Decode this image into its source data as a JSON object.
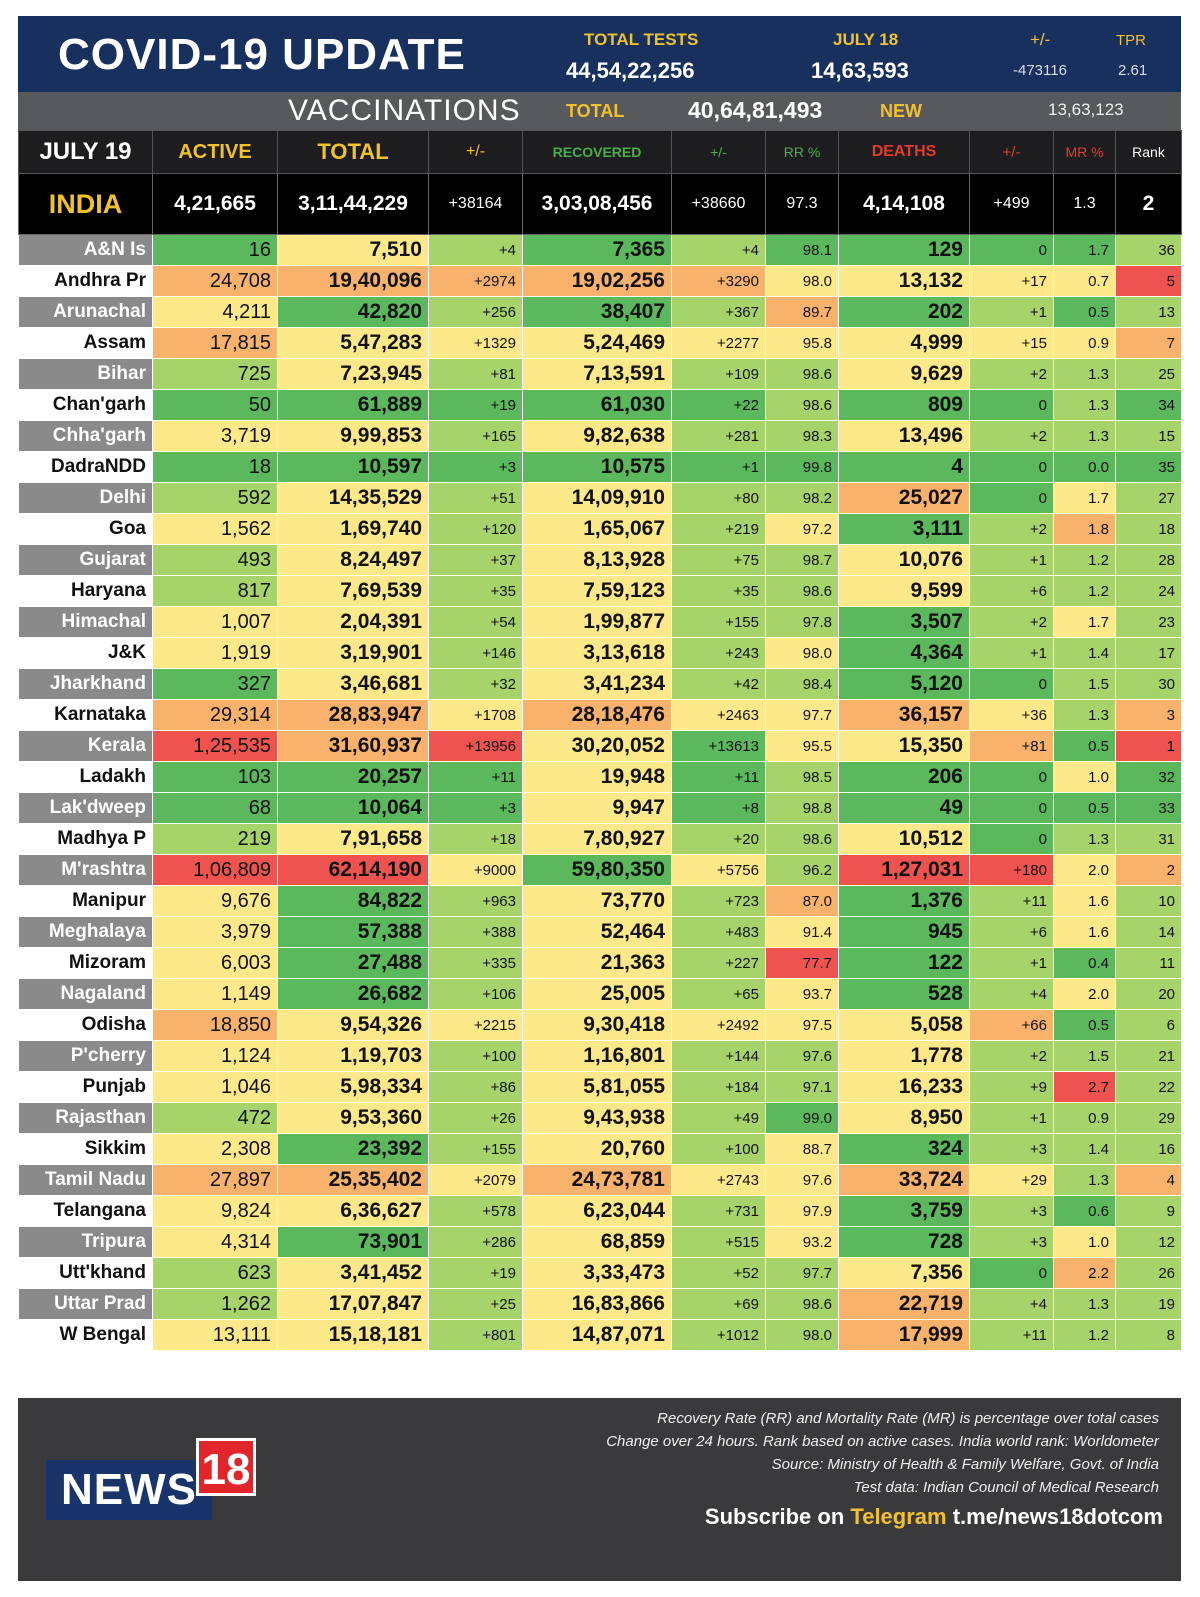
{
  "header": {
    "title": "COVID-19 UPDATE",
    "total_tests_label": "TOTAL TESTS",
    "total_tests_value": "44,54,22,256",
    "date_label": "JULY 18",
    "date_value": "14,63,593",
    "change_label": "+/-",
    "change_value": "-473116",
    "tpr_label": "TPR",
    "tpr_value": "2.61"
  },
  "vaccinations": {
    "title": "VACCINATIONS",
    "total_label": "TOTAL",
    "total_value": "40,64,81,493",
    "new_label": "NEW",
    "new_value": "13,63,123"
  },
  "columns": {
    "date": "JULY 19",
    "active": "ACTIVE",
    "total": "TOTAL",
    "total_change": "+/-",
    "recovered": "RECOVERED",
    "recovered_change": "+/-",
    "rr": "RR %",
    "deaths": "DEATHS",
    "deaths_change": "+/-",
    "mr": "MR %",
    "rank": "Rank"
  },
  "india": {
    "name": "INDIA",
    "active": "4,21,665",
    "total": "3,11,44,229",
    "total_change": "+38164",
    "recovered": "3,03,08,456",
    "recovered_change": "+38660",
    "rr": "97.3",
    "deaths": "4,14,108",
    "deaths_change": "+499",
    "mr": "1.3",
    "rank": "2"
  },
  "colors": {
    "green": "#5cb85c",
    "light_green": "#a6d36a",
    "yellow": "#fde98a",
    "orange": "#f9b26c",
    "red": "#ef5350"
  },
  "rows": [
    [
      "A&N Is",
      "16",
      "7,510",
      "+4",
      "7,365",
      "+4",
      "98.1",
      "129",
      "0",
      "1.7",
      "36"
    ],
    [
      "Andhra Pr",
      "24,708",
      "19,40,096",
      "+2974",
      "19,02,256",
      "+3290",
      "98.0",
      "13,132",
      "+17",
      "0.7",
      "5"
    ],
    [
      "Arunachal",
      "4,211",
      "42,820",
      "+256",
      "38,407",
      "+367",
      "89.7",
      "202",
      "+1",
      "0.5",
      "13"
    ],
    [
      "Assam",
      "17,815",
      "5,47,283",
      "+1329",
      "5,24,469",
      "+2277",
      "95.8",
      "4,999",
      "+15",
      "0.9",
      "7"
    ],
    [
      "Bihar",
      "725",
      "7,23,945",
      "+81",
      "7,13,591",
      "+109",
      "98.6",
      "9,629",
      "+2",
      "1.3",
      "25"
    ],
    [
      "Chan'garh",
      "50",
      "61,889",
      "+19",
      "61,030",
      "+22",
      "98.6",
      "809",
      "0",
      "1.3",
      "34"
    ],
    [
      "Chha'garh",
      "3,719",
      "9,99,853",
      "+165",
      "9,82,638",
      "+281",
      "98.3",
      "13,496",
      "+2",
      "1.3",
      "15"
    ],
    [
      "DadraNDD",
      "18",
      "10,597",
      "+3",
      "10,575",
      "+1",
      "99.8",
      "4",
      "0",
      "0.0",
      "35"
    ],
    [
      "Delhi",
      "592",
      "14,35,529",
      "+51",
      "14,09,910",
      "+80",
      "98.2",
      "25,027",
      "0",
      "1.7",
      "27"
    ],
    [
      "Goa",
      "1,562",
      "1,69,740",
      "+120",
      "1,65,067",
      "+219",
      "97.2",
      "3,111",
      "+2",
      "1.8",
      "18"
    ],
    [
      "Gujarat",
      "493",
      "8,24,497",
      "+37",
      "8,13,928",
      "+75",
      "98.7",
      "10,076",
      "+1",
      "1.2",
      "28"
    ],
    [
      "Haryana",
      "817",
      "7,69,539",
      "+35",
      "7,59,123",
      "+35",
      "98.6",
      "9,599",
      "+6",
      "1.2",
      "24"
    ],
    [
      "Himachal",
      "1,007",
      "2,04,391",
      "+54",
      "1,99,877",
      "+155",
      "97.8",
      "3,507",
      "+2",
      "1.7",
      "23"
    ],
    [
      "J&K",
      "1,919",
      "3,19,901",
      "+146",
      "3,13,618",
      "+243",
      "98.0",
      "4,364",
      "+1",
      "1.4",
      "17"
    ],
    [
      "Jharkhand",
      "327",
      "3,46,681",
      "+32",
      "3,41,234",
      "+42",
      "98.4",
      "5,120",
      "0",
      "1.5",
      "30"
    ],
    [
      "Karnataka",
      "29,314",
      "28,83,947",
      "+1708",
      "28,18,476",
      "+2463",
      "97.7",
      "36,157",
      "+36",
      "1.3",
      "3"
    ],
    [
      "Kerala",
      "1,25,535",
      "31,60,937",
      "+13956",
      "30,20,052",
      "+13613",
      "95.5",
      "15,350",
      "+81",
      "0.5",
      "1"
    ],
    [
      "Ladakh",
      "103",
      "20,257",
      "+11",
      "19,948",
      "+11",
      "98.5",
      "206",
      "0",
      "1.0",
      "32"
    ],
    [
      "Lak'dweep",
      "68",
      "10,064",
      "+3",
      "9,947",
      "+8",
      "98.8",
      "49",
      "0",
      "0.5",
      "33"
    ],
    [
      "Madhya P",
      "219",
      "7,91,658",
      "+18",
      "7,80,927",
      "+20",
      "98.6",
      "10,512",
      "0",
      "1.3",
      "31"
    ],
    [
      "M'rashtra",
      "1,06,809",
      "62,14,190",
      "+9000",
      "59,80,350",
      "+5756",
      "96.2",
      "1,27,031",
      "+180",
      "2.0",
      "2"
    ],
    [
      "Manipur",
      "9,676",
      "84,822",
      "+963",
      "73,770",
      "+723",
      "87.0",
      "1,376",
      "+11",
      "1.6",
      "10"
    ],
    [
      "Meghalaya",
      "3,979",
      "57,388",
      "+388",
      "52,464",
      "+483",
      "91.4",
      "945",
      "+6",
      "1.6",
      "14"
    ],
    [
      "Mizoram",
      "6,003",
      "27,488",
      "+335",
      "21,363",
      "+227",
      "77.7",
      "122",
      "+1",
      "0.4",
      "11"
    ],
    [
      "Nagaland",
      "1,149",
      "26,682",
      "+106",
      "25,005",
      "+65",
      "93.7",
      "528",
      "+4",
      "2.0",
      "20"
    ],
    [
      "Odisha",
      "18,850",
      "9,54,326",
      "+2215",
      "9,30,418",
      "+2492",
      "97.5",
      "5,058",
      "+66",
      "0.5",
      "6"
    ],
    [
      "P'cherry",
      "1,124",
      "1,19,703",
      "+100",
      "1,16,801",
      "+144",
      "97.6",
      "1,778",
      "+2",
      "1.5",
      "21"
    ],
    [
      "Punjab",
      "1,046",
      "5,98,334",
      "+86",
      "5,81,055",
      "+184",
      "97.1",
      "16,233",
      "+9",
      "2.7",
      "22"
    ],
    [
      "Rajasthan",
      "472",
      "9,53,360",
      "+26",
      "9,43,938",
      "+49",
      "99.0",
      "8,950",
      "+1",
      "0.9",
      "29"
    ],
    [
      "Sikkim",
      "2,308",
      "23,392",
      "+155",
      "20,760",
      "+100",
      "88.7",
      "324",
      "+3",
      "1.4",
      "16"
    ],
    [
      "Tamil Nadu",
      "27,897",
      "25,35,402",
      "+2079",
      "24,73,781",
      "+2743",
      "97.6",
      "33,724",
      "+29",
      "1.3",
      "4"
    ],
    [
      "Telangana",
      "9,824",
      "6,36,627",
      "+578",
      "6,23,044",
      "+731",
      "97.9",
      "3,759",
      "+3",
      "0.6",
      "9"
    ],
    [
      "Tripura",
      "4,314",
      "73,901",
      "+286",
      "68,859",
      "+515",
      "93.2",
      "728",
      "+3",
      "1.0",
      "12"
    ],
    [
      "Utt'khand",
      "623",
      "3,41,452",
      "+19",
      "3,33,473",
      "+52",
      "97.7",
      "7,356",
      "0",
      "2.2",
      "26"
    ],
    [
      "Uttar Prad",
      "1,262",
      "17,07,847",
      "+25",
      "16,83,866",
      "+69",
      "98.6",
      "22,719",
      "+4",
      "1.3",
      "19"
    ],
    [
      "W Bengal",
      "13,111",
      "15,18,181",
      "+801",
      "14,87,071",
      "+1012",
      "98.0",
      "17,999",
      "+11",
      "1.2",
      "8"
    ]
  ],
  "row_colors": [
    [
      "G",
      "Y",
      "LG",
      "G",
      "LG",
      "G",
      "G",
      "G",
      "G",
      "LG"
    ],
    [
      "O",
      "O",
      "O",
      "O",
      "O",
      "Y",
      "Y",
      "Y",
      "Y",
      "R"
    ],
    [
      "Y",
      "G",
      "LG",
      "G",
      "LG",
      "O",
      "G",
      "LG",
      "G",
      "LG"
    ],
    [
      "O",
      "Y",
      "Y",
      "Y",
      "Y",
      "Y",
      "Y",
      "Y",
      "Y",
      "O"
    ],
    [
      "LG",
      "Y",
      "LG",
      "Y",
      "LG",
      "LG",
      "Y",
      "LG",
      "LG",
      "LG"
    ],
    [
      "G",
      "G",
      "G",
      "G",
      "G",
      "LG",
      "G",
      "G",
      "LG",
      "G"
    ],
    [
      "Y",
      "Y",
      "LG",
      "Y",
      "LG",
      "LG",
      "Y",
      "LG",
      "LG",
      "LG"
    ],
    [
      "G",
      "G",
      "G",
      "G",
      "G",
      "G",
      "G",
      "G",
      "G",
      "G"
    ],
    [
      "LG",
      "Y",
      "LG",
      "Y",
      "LG",
      "LG",
      "O",
      "G",
      "Y",
      "LG"
    ],
    [
      "Y",
      "Y",
      "LG",
      "Y",
      "LG",
      "Y",
      "G",
      "LG",
      "O",
      "LG"
    ],
    [
      "LG",
      "Y",
      "LG",
      "Y",
      "LG",
      "LG",
      "Y",
      "LG",
      "LG",
      "LG"
    ],
    [
      "LG",
      "Y",
      "LG",
      "Y",
      "LG",
      "LG",
      "Y",
      "LG",
      "LG",
      "LG"
    ],
    [
      "Y",
      "Y",
      "LG",
      "Y",
      "LG",
      "LG",
      "G",
      "LG",
      "Y",
      "LG"
    ],
    [
      "Y",
      "Y",
      "LG",
      "Y",
      "LG",
      "Y",
      "G",
      "LG",
      "LG",
      "LG"
    ],
    [
      "G",
      "Y",
      "LG",
      "Y",
      "LG",
      "LG",
      "G",
      "G",
      "LG",
      "LG"
    ],
    [
      "O",
      "O",
      "Y",
      "O",
      "Y",
      "Y",
      "O",
      "Y",
      "LG",
      "O"
    ],
    [
      "R",
      "O",
      "R",
      "Y",
      "G",
      "Y",
      "Y",
      "O",
      "G",
      "R"
    ],
    [
      "G",
      "G",
      "G",
      "Y",
      "G",
      "LG",
      "G",
      "G",
      "Y",
      "G"
    ],
    [
      "G",
      "G",
      "G",
      "Y",
      "G",
      "LG",
      "G",
      "G",
      "G",
      "G"
    ],
    [
      "LG",
      "Y",
      "LG",
      "Y",
      "LG",
      "LG",
      "Y",
      "G",
      "LG",
      "LG"
    ],
    [
      "R",
      "R",
      "Y",
      "G",
      "Y",
      "LG",
      "R",
      "R",
      "Y",
      "O"
    ],
    [
      "Y",
      "G",
      "LG",
      "Y",
      "LG",
      "O",
      "G",
      "LG",
      "Y",
      "LG"
    ],
    [
      "Y",
      "G",
      "LG",
      "Y",
      "LG",
      "Y",
      "G",
      "LG",
      "Y",
      "LG"
    ],
    [
      "Y",
      "G",
      "LG",
      "Y",
      "LG",
      "R",
      "G",
      "LG",
      "G",
      "LG"
    ],
    [
      "Y",
      "G",
      "LG",
      "Y",
      "LG",
      "Y",
      "G",
      "LG",
      "Y",
      "LG"
    ],
    [
      "O",
      "Y",
      "Y",
      "Y",
      "Y",
      "Y",
      "Y",
      "O",
      "G",
      "LG"
    ],
    [
      "Y",
      "Y",
      "LG",
      "Y",
      "LG",
      "LG",
      "Y",
      "LG",
      "LG",
      "LG"
    ],
    [
      "Y",
      "Y",
      "LG",
      "Y",
      "LG",
      "LG",
      "Y",
      "LG",
      "R",
      "LG"
    ],
    [
      "LG",
      "Y",
      "LG",
      "Y",
      "LG",
      "G",
      "Y",
      "LG",
      "LG",
      "LG"
    ],
    [
      "Y",
      "G",
      "LG",
      "Y",
      "LG",
      "Y",
      "G",
      "LG",
      "LG",
      "LG"
    ],
    [
      "O",
      "O",
      "Y",
      "O",
      "Y",
      "Y",
      "O",
      "Y",
      "LG",
      "O"
    ],
    [
      "Y",
      "Y",
      "LG",
      "Y",
      "LG",
      "Y",
      "G",
      "LG",
      "G",
      "LG"
    ],
    [
      "Y",
      "G",
      "LG",
      "Y",
      "LG",
      "Y",
      "G",
      "LG",
      "Y",
      "LG"
    ],
    [
      "LG",
      "Y",
      "LG",
      "Y",
      "LG",
      "LG",
      "Y",
      "G",
      "O",
      "LG"
    ],
    [
      "LG",
      "Y",
      "LG",
      "Y",
      "LG",
      "LG",
      "O",
      "LG",
      "LG",
      "LG"
    ],
    [
      "Y",
      "Y",
      "LG",
      "Y",
      "LG",
      "LG",
      "O",
      "LG",
      "LG",
      "LG"
    ]
  ],
  "footer": {
    "note1": "Recovery Rate (RR) and Mortality Rate (MR) is percentage over total cases",
    "note2": "Change over 24 hours. Rank based on active cases. India world rank: Worldometer",
    "note3": "Source: Ministry of Health & Family Welfare, Govt. of India",
    "note4": "Test data: Indian Council of Medical Research",
    "subscribe_prefix": "Subscribe on",
    "subscribe_brand": "Telegram",
    "subscribe_link": "t.me/news18dotcom",
    "logo_news": "NEWS",
    "logo_18": "18"
  }
}
